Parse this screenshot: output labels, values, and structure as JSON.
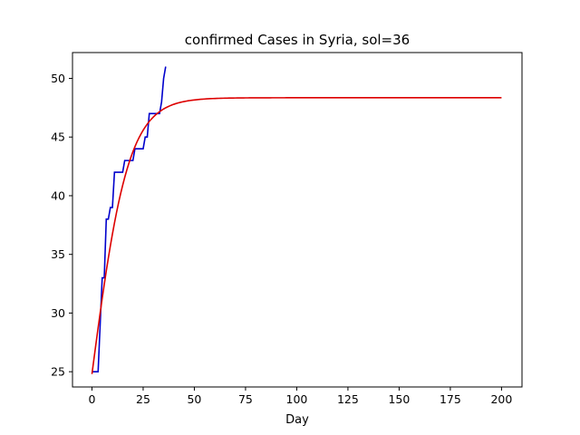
{
  "chart_data": {
    "type": "line",
    "title": "confirmed Cases in Syria, sol=36",
    "xlabel": "Day",
    "ylabel": "",
    "xlim": [
      -9.5,
      210
    ],
    "ylim": [
      23.7,
      52.2
    ],
    "xticks": [
      0,
      25,
      50,
      75,
      100,
      125,
      150,
      175,
      200
    ],
    "yticks": [
      25,
      30,
      35,
      40,
      45,
      50
    ],
    "grid": false,
    "legend": "none",
    "series": [
      {
        "color": "#0000cc",
        "x": [
          0,
          1,
          2,
          3,
          4,
          5,
          6,
          7,
          8,
          9,
          10,
          11,
          12,
          13,
          14,
          15,
          16,
          17,
          18,
          19,
          20,
          21,
          22,
          23,
          24,
          25,
          26,
          27,
          28,
          29,
          30,
          31,
          32,
          33,
          34,
          35,
          36
        ],
        "values": [
          25,
          25,
          25,
          25,
          29,
          33,
          33,
          38,
          38,
          39,
          39,
          42,
          42,
          42,
          42,
          42,
          43,
          43,
          43,
          43,
          43,
          44,
          44,
          44,
          44,
          44,
          45,
          45,
          47,
          47,
          47,
          47,
          47,
          47,
          48,
          50,
          51
        ]
      },
      {
        "color": "#dd0000",
        "model": {
          "L": 48.35,
          "y0": 24.8,
          "k": 0.11
        },
        "x_range": [
          0,
          200
        ]
      }
    ]
  }
}
